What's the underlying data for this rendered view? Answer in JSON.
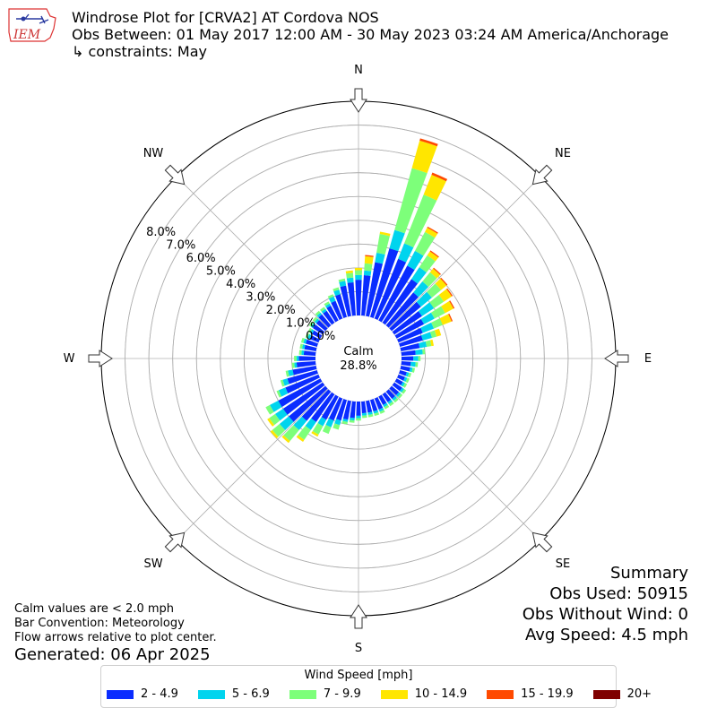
{
  "header": {
    "title": "Windrose Plot for [CRVA2] AT Cordova NOS",
    "subtitle": "Obs Between: 01 May 2017 12:00 AM - 30 May 2023 03:24 AM America/Anchorage",
    "constraints": "↳ constraints: May"
  },
  "logo": {
    "text": "IEM"
  },
  "compass": {
    "N": "N",
    "NE": "NE",
    "E": "E",
    "SE": "SE",
    "S": "S",
    "SW": "SW",
    "W": "W",
    "NW": "NW"
  },
  "calm": {
    "label": "Calm",
    "value": "28.8%"
  },
  "notes": {
    "line1": "Calm values are < 2.0 mph",
    "line2": "Bar Convention: Meteorology",
    "line3": "Flow arrows relative to plot center."
  },
  "generated": "Generated: 06 Apr 2025",
  "summary": {
    "title": "Summary",
    "obs_used": "Obs Used: 50915",
    "obs_without_wind": "Obs Without Wind: 0",
    "avg_speed": "Avg Speed: 4.5 mph"
  },
  "legend": {
    "title": "Wind Speed [mph]"
  },
  "chart_data": {
    "type": "windrose",
    "radial_ticks": [
      "0.0%",
      "1.0%",
      "2.0%",
      "3.0%",
      "4.0%",
      "5.0%",
      "6.0%",
      "7.0%",
      "8.0%"
    ],
    "rlim": [
      0,
      9
    ],
    "calm_percent": 28.8,
    "grid": true,
    "legend_position": "bottom",
    "series": [
      {
        "name": "2 - 4.9",
        "color": "#0a2cff",
        "values": [
          1.5,
          1.7,
          2.3,
          3.0,
          2.7,
          2.6,
          2.2,
          1.8,
          1.6,
          1.4,
          1.3,
          1.1,
          1.0,
          0.8,
          0.6,
          0.5,
          0.4,
          0.4,
          0.3,
          0.3,
          0.3,
          0.4,
          0.4,
          0.4,
          0.4,
          0.4,
          0.5,
          0.5,
          0.5,
          0.5,
          0.6,
          0.7,
          0.8,
          0.9,
          1.0,
          1.1,
          1.4,
          1.6,
          2.0,
          2.0,
          2.0,
          1.5,
          1.3,
          1.0,
          0.8,
          0.7,
          0.5,
          0.5,
          0.5,
          0.4,
          0.4,
          0.5,
          0.5,
          0.6,
          0.6,
          0.7,
          0.8,
          1.0,
          1.3,
          1.4
        ]
      },
      {
        "name": "5 - 6.9",
        "color": "#00d4ee",
        "values": [
          0.2,
          0.2,
          0.4,
          0.8,
          0.7,
          0.7,
          0.6,
          0.6,
          0.6,
          0.6,
          0.5,
          0.5,
          0.4,
          0.3,
          0.3,
          0.2,
          0.2,
          0.1,
          0.1,
          0.1,
          0.1,
          0.1,
          0.1,
          0.1,
          0.1,
          0.1,
          0.1,
          0.1,
          0.1,
          0.1,
          0.1,
          0.1,
          0.1,
          0.2,
          0.3,
          0.3,
          0.4,
          0.5,
          0.5,
          0.4,
          0.4,
          0.3,
          0.2,
          0.2,
          0.1,
          0.1,
          0.1,
          0.1,
          0.1,
          0.1,
          0.1,
          0.1,
          0.1,
          0.1,
          0.1,
          0.1,
          0.2,
          0.2,
          0.2,
          0.2
        ]
      },
      {
        "name": "7 - 9.9",
        "color": "#7dff7a",
        "values": [
          0.2,
          0.3,
          0.8,
          2.7,
          2.2,
          0.9,
          0.6,
          0.5,
          0.5,
          0.5,
          0.5,
          0.4,
          0.2,
          0.2,
          0.1,
          0.1,
          0.1,
          0.1,
          0.1,
          0.1,
          0.1,
          0.1,
          0.1,
          0.1,
          0.1,
          0.1,
          0.1,
          0.1,
          0.1,
          0.1,
          0.1,
          0.1,
          0.1,
          0.2,
          0.3,
          0.4,
          0.5,
          0.6,
          0.4,
          0.3,
          0.2,
          0.1,
          0.1,
          0.1,
          0.1,
          0.1,
          0.1,
          0.1,
          0.1,
          0.1,
          0.1,
          0.1,
          0.1,
          0.1,
          0.1,
          0.1,
          0.1,
          0.1,
          0.1,
          0.2
        ]
      },
      {
        "name": "10 - 14.9",
        "color": "#ffe600",
        "values": [
          0.1,
          0.3,
          0.1,
          1.2,
          0.9,
          0.2,
          0.2,
          0.2,
          0.3,
          0.4,
          0.4,
          0.4,
          0.2,
          0.1,
          0.0,
          0.0,
          0.0,
          0.0,
          0.0,
          0.0,
          0.0,
          0.0,
          0.0,
          0.0,
          0.0,
          0.0,
          0.0,
          0.0,
          0.0,
          0.0,
          0.0,
          0.0,
          0.0,
          0.0,
          0.0,
          0.1,
          0.1,
          0.1,
          0.1,
          0.1,
          0.0,
          0.0,
          0.0,
          0.0,
          0.0,
          0.0,
          0.0,
          0.0,
          0.0,
          0.0,
          0.0,
          0.0,
          0.0,
          0.0,
          0.0,
          0.0,
          0.0,
          0.0,
          0.0,
          0.1
        ]
      },
      {
        "name": "15 - 19.9",
        "color": "#ff4a00",
        "values": [
          0.0,
          0.05,
          0.0,
          0.1,
          0.1,
          0.05,
          0.05,
          0.05,
          0.05,
          0.05,
          0.05,
          0.05,
          0.0,
          0.0,
          0.0,
          0.0,
          0.0,
          0.0,
          0.0,
          0.0,
          0.0,
          0.0,
          0.0,
          0.0,
          0.0,
          0.0,
          0.0,
          0.0,
          0.0,
          0.0,
          0.0,
          0.0,
          0.0,
          0.0,
          0.0,
          0.0,
          0.0,
          0.0,
          0.0,
          0.0,
          0.0,
          0.0,
          0.0,
          0.0,
          0.0,
          0.0,
          0.0,
          0.0,
          0.0,
          0.0,
          0.0,
          0.0,
          0.0,
          0.0,
          0.0,
          0.0,
          0.0,
          0.0,
          0.0,
          0.0
        ]
      },
      {
        "name": "20+",
        "color": "#7f0000",
        "values": [
          0,
          0,
          0,
          0,
          0,
          0,
          0,
          0,
          0,
          0,
          0,
          0,
          0,
          0,
          0,
          0,
          0,
          0,
          0,
          0,
          0,
          0,
          0,
          0,
          0,
          0,
          0,
          0,
          0,
          0,
          0,
          0,
          0,
          0,
          0,
          0,
          0,
          0,
          0,
          0,
          0,
          0,
          0,
          0,
          0,
          0,
          0,
          0,
          0,
          0,
          0,
          0,
          0,
          0,
          0,
          0,
          0,
          0,
          0,
          0
        ]
      }
    ]
  }
}
